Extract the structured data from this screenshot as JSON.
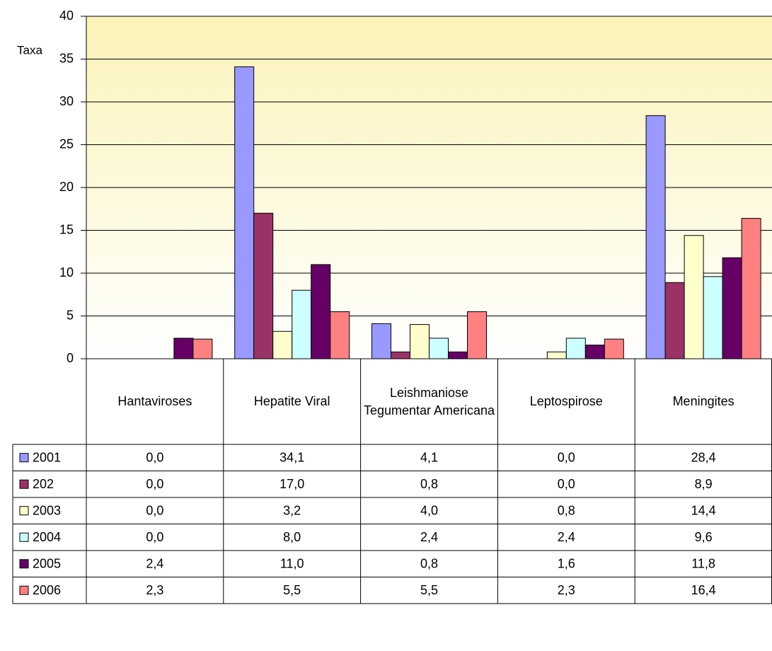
{
  "chart_data": {
    "type": "bar",
    "y_label": "Taxa",
    "categories": [
      "Hantaviroses",
      "Hepatite Viral",
      "Leishmaniose Tegumentar Americana",
      "Leptospirose",
      "Meningites"
    ],
    "series": [
      {
        "name": "2001",
        "color": "#9999ff",
        "values": [
          0.0,
          34.1,
          4.1,
          0.0,
          28.4
        ],
        "value_labels": [
          "0,0",
          "34,1",
          "4,1",
          "0,0",
          "28,4"
        ]
      },
      {
        "name": "202",
        "color": "#993366",
        "values": [
          0.0,
          17.0,
          0.8,
          0.0,
          8.9
        ],
        "value_labels": [
          "0,0",
          "17,0",
          "0,8",
          "0,0",
          "8,9"
        ]
      },
      {
        "name": "2003",
        "color": "#ffffcc",
        "values": [
          0.0,
          3.2,
          4.0,
          0.8,
          14.4
        ],
        "value_labels": [
          "0,0",
          "3,2",
          "4,0",
          "0,8",
          "14,4"
        ]
      },
      {
        "name": "2004",
        "color": "#ccffff",
        "values": [
          0.0,
          8.0,
          2.4,
          2.4,
          9.6
        ],
        "value_labels": [
          "0,0",
          "8,0",
          "2,4",
          "2,4",
          "9,6"
        ]
      },
      {
        "name": "2005",
        "color": "#660066",
        "values": [
          2.4,
          11.0,
          0.8,
          1.6,
          11.8
        ],
        "value_labels": [
          "2,4",
          "11,0",
          "0,8",
          "1,6",
          "11,8"
        ]
      },
      {
        "name": "2006",
        "color": "#ff8080",
        "values": [
          2.3,
          5.5,
          5.5,
          2.3,
          16.4
        ],
        "value_labels": [
          "2,3",
          "5,5",
          "5,5",
          "2,3",
          "16,4"
        ]
      }
    ],
    "ylim": [
      0,
      40
    ],
    "yticks": [
      0,
      5,
      10,
      15,
      20,
      25,
      30,
      35,
      40
    ]
  }
}
